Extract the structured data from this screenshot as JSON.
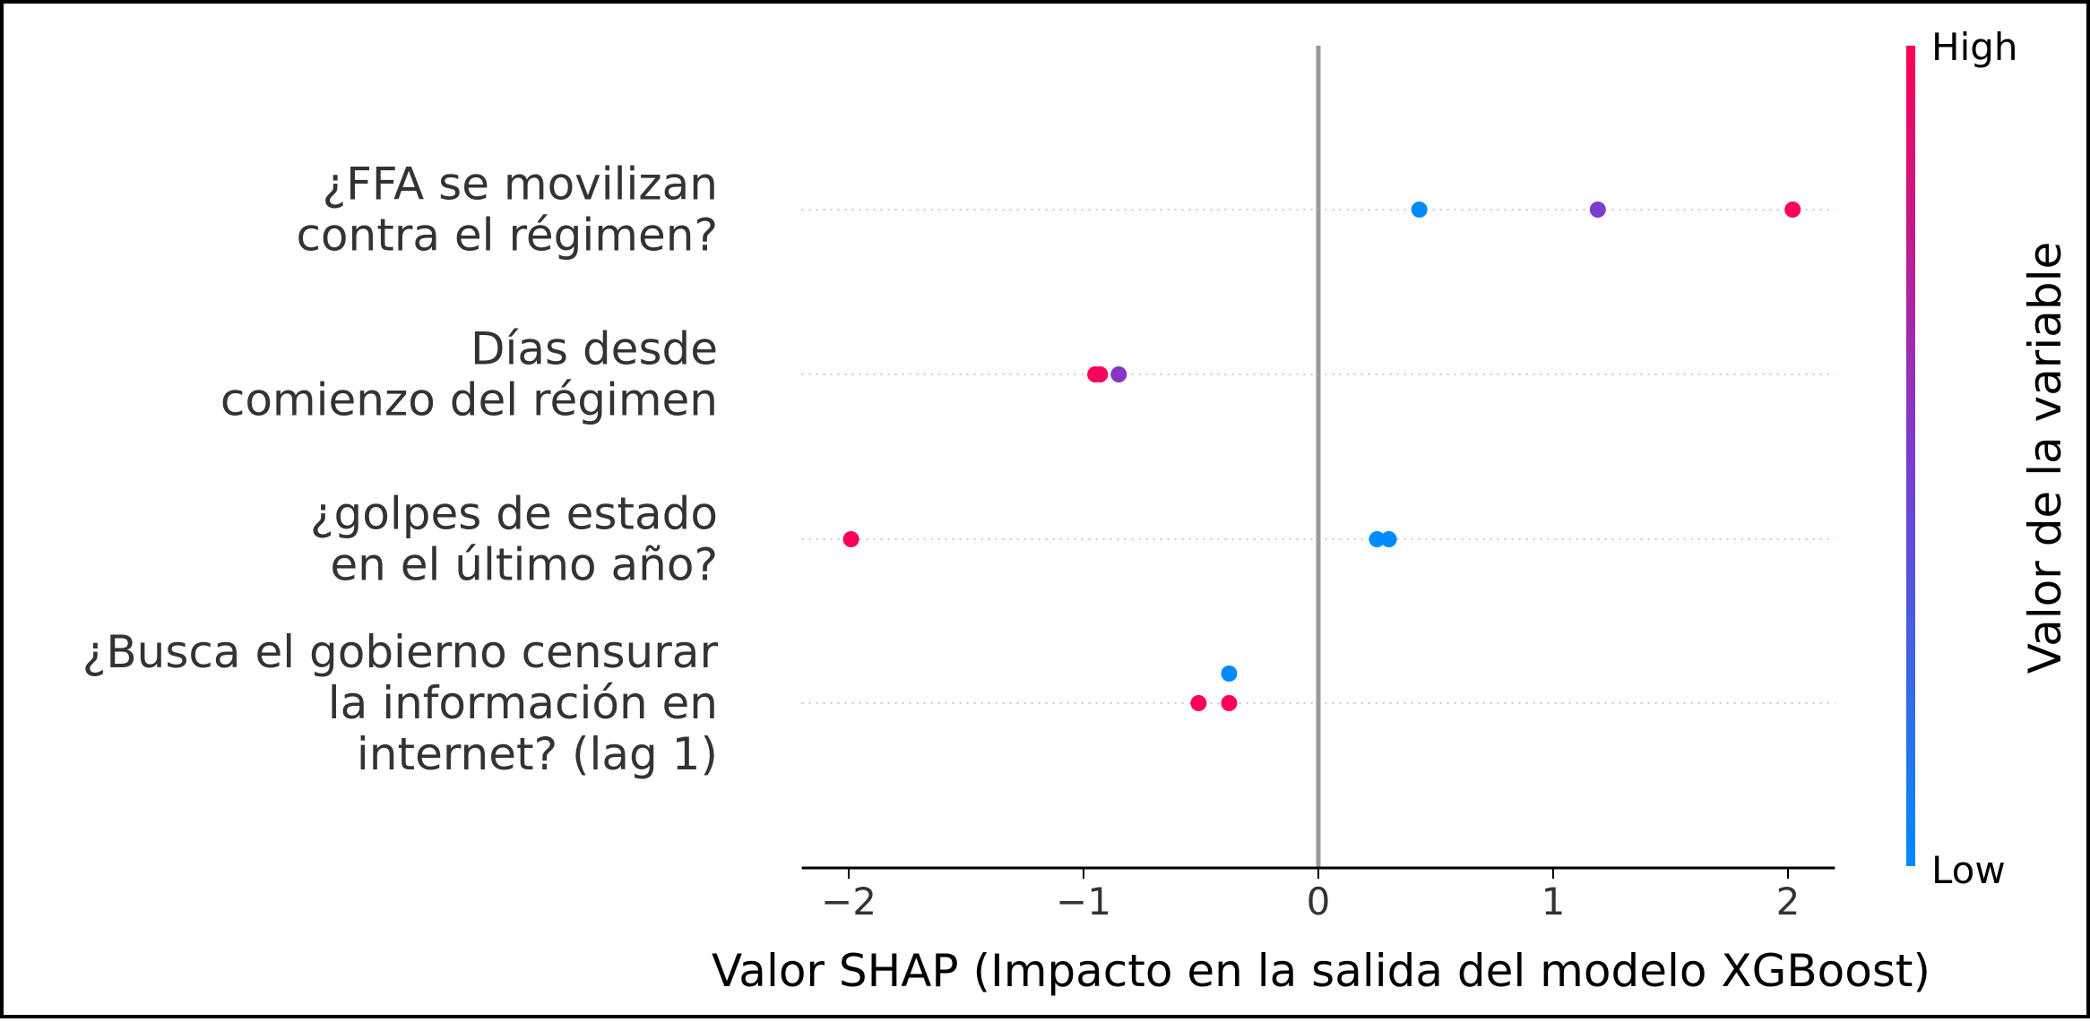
{
  "chart_data": {
    "type": "scatter",
    "subtype": "shap-beeswarm",
    "xlabel": "Valor SHAP (Impacto en la salida del modelo XGBoost)",
    "xlim": [
      -2.2,
      2.2
    ],
    "xticks": [
      -2,
      -1,
      0,
      1,
      2
    ],
    "xtick_labels": [
      "−2",
      "−1",
      "0",
      "1",
      "2"
    ],
    "features": [
      {
        "label": "¿FFA se movilizan\ncontra el régimen?",
        "points": [
          {
            "shap": 0.43,
            "value": 0.0
          },
          {
            "shap": 1.19,
            "value": 0.5
          },
          {
            "shap": 2.02,
            "value": 1.0
          }
        ]
      },
      {
        "label": "Días desde\ncomienzo del régimen",
        "points": [
          {
            "shap": -0.95,
            "value": 1.0
          },
          {
            "shap": -0.93,
            "value": 0.95
          },
          {
            "shap": -0.85,
            "value": 0.55
          }
        ]
      },
      {
        "label": "¿golpes de estado\nen el último año?",
        "points": [
          {
            "shap": -1.99,
            "value": 1.0
          },
          {
            "shap": 0.25,
            "value": 0.0
          },
          {
            "shap": 0.3,
            "value": 0.0
          }
        ]
      },
      {
        "label": "¿Busca el gobierno censurar\nla información en\ninternet? (lag 1)",
        "points": [
          {
            "shap": -0.38,
            "value": 0.0,
            "jitter": -1
          },
          {
            "shap": -0.51,
            "value": 1.0
          },
          {
            "shap": -0.38,
            "value": 1.0
          }
        ]
      }
    ],
    "colorbar": {
      "title": "Valor de la variable",
      "high_label": "High",
      "low_label": "Low",
      "low_color": "#008bfb",
      "high_color": "#ff0052"
    },
    "grid": false,
    "zero_line": true
  }
}
